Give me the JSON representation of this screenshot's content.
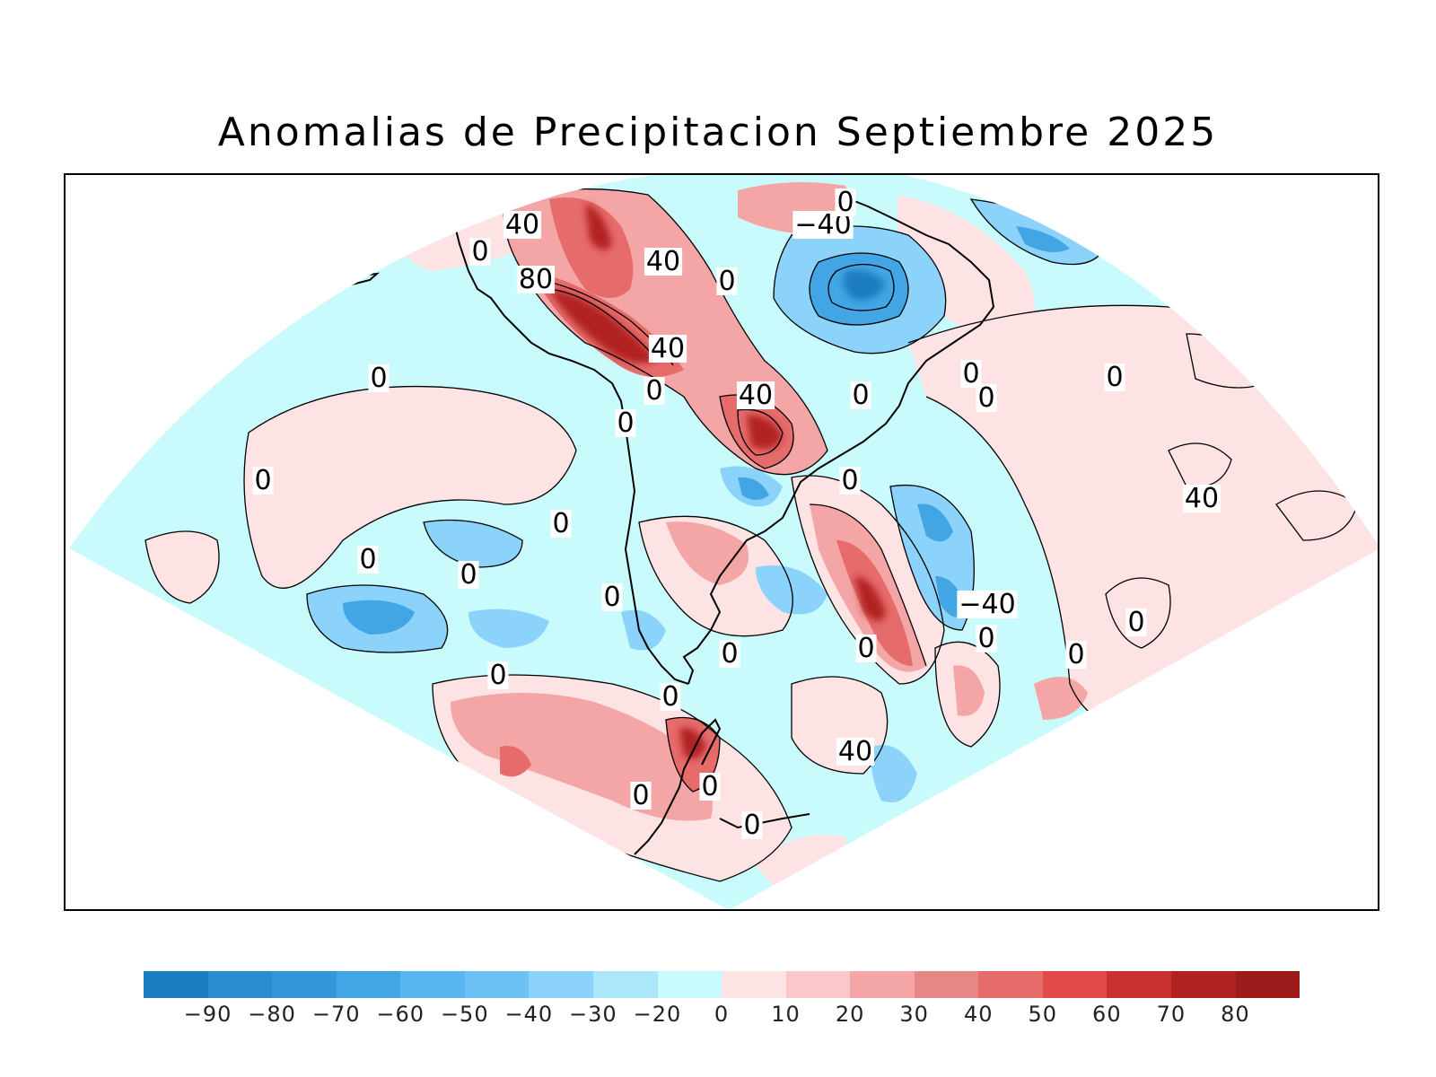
{
  "title": "Anomalias de Precipitacion Septiembre 2025",
  "colors": {
    "frame": "#000000",
    "coast": "#000000",
    "outside": "#ffffff"
  },
  "colorbar": {
    "colors": [
      "#1b7dbf",
      "#2a8ccf",
      "#3597da",
      "#42a6e4",
      "#58b5ef",
      "#6cc2f5",
      "#8bd3fa",
      "#ace6fb",
      "#c9fbfd",
      "#fde3e3",
      "#fac8c8",
      "#f4a5a5",
      "#e68787",
      "#e66b6b",
      "#e04a4a",
      "#c93030",
      "#b22222",
      "#9c1b1b"
    ],
    "ticks": [
      "−90",
      "−80",
      "−70",
      "−60",
      "−50",
      "−40",
      "−30",
      "−20",
      "0",
      "10",
      "20",
      "30",
      "40",
      "50",
      "60",
      "70",
      "80"
    ]
  },
  "contour_labels": [
    "40",
    "0",
    "80",
    "40",
    "0",
    "−40",
    "0",
    "40",
    "0",
    "0",
    "40",
    "0",
    "0",
    "0",
    "0",
    "0",
    "0",
    "0",
    "40",
    "0",
    "0",
    "0",
    "0",
    "−40",
    "0",
    "0",
    "0",
    "0",
    "0",
    "0",
    "0",
    "40",
    "0",
    "0",
    "0"
  ]
}
